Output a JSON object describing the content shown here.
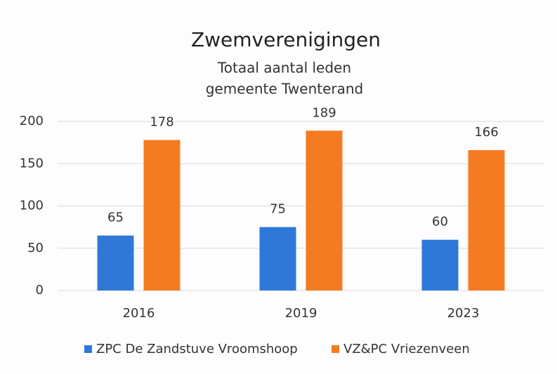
{
  "chart_data": {
    "type": "bar",
    "title": "Zwemverenigingen",
    "subtitle": [
      "Totaal aantal leden",
      "gemeente Twenterand"
    ],
    "categories": [
      "2016",
      "2019",
      "2023"
    ],
    "series": [
      {
        "name": "ZPC De Zandstuve Vroomshoop",
        "color": "#2f78d8",
        "values": [
          65,
          75,
          60
        ]
      },
      {
        "name": "VZ&PC Vriezenveen",
        "color": "#f57b22",
        "values": [
          178,
          189,
          166
        ]
      }
    ],
    "ylim": [
      0,
      200
    ],
    "yticks": [
      0,
      50,
      100,
      150,
      200
    ],
    "grid": true,
    "legend": "bottom"
  }
}
